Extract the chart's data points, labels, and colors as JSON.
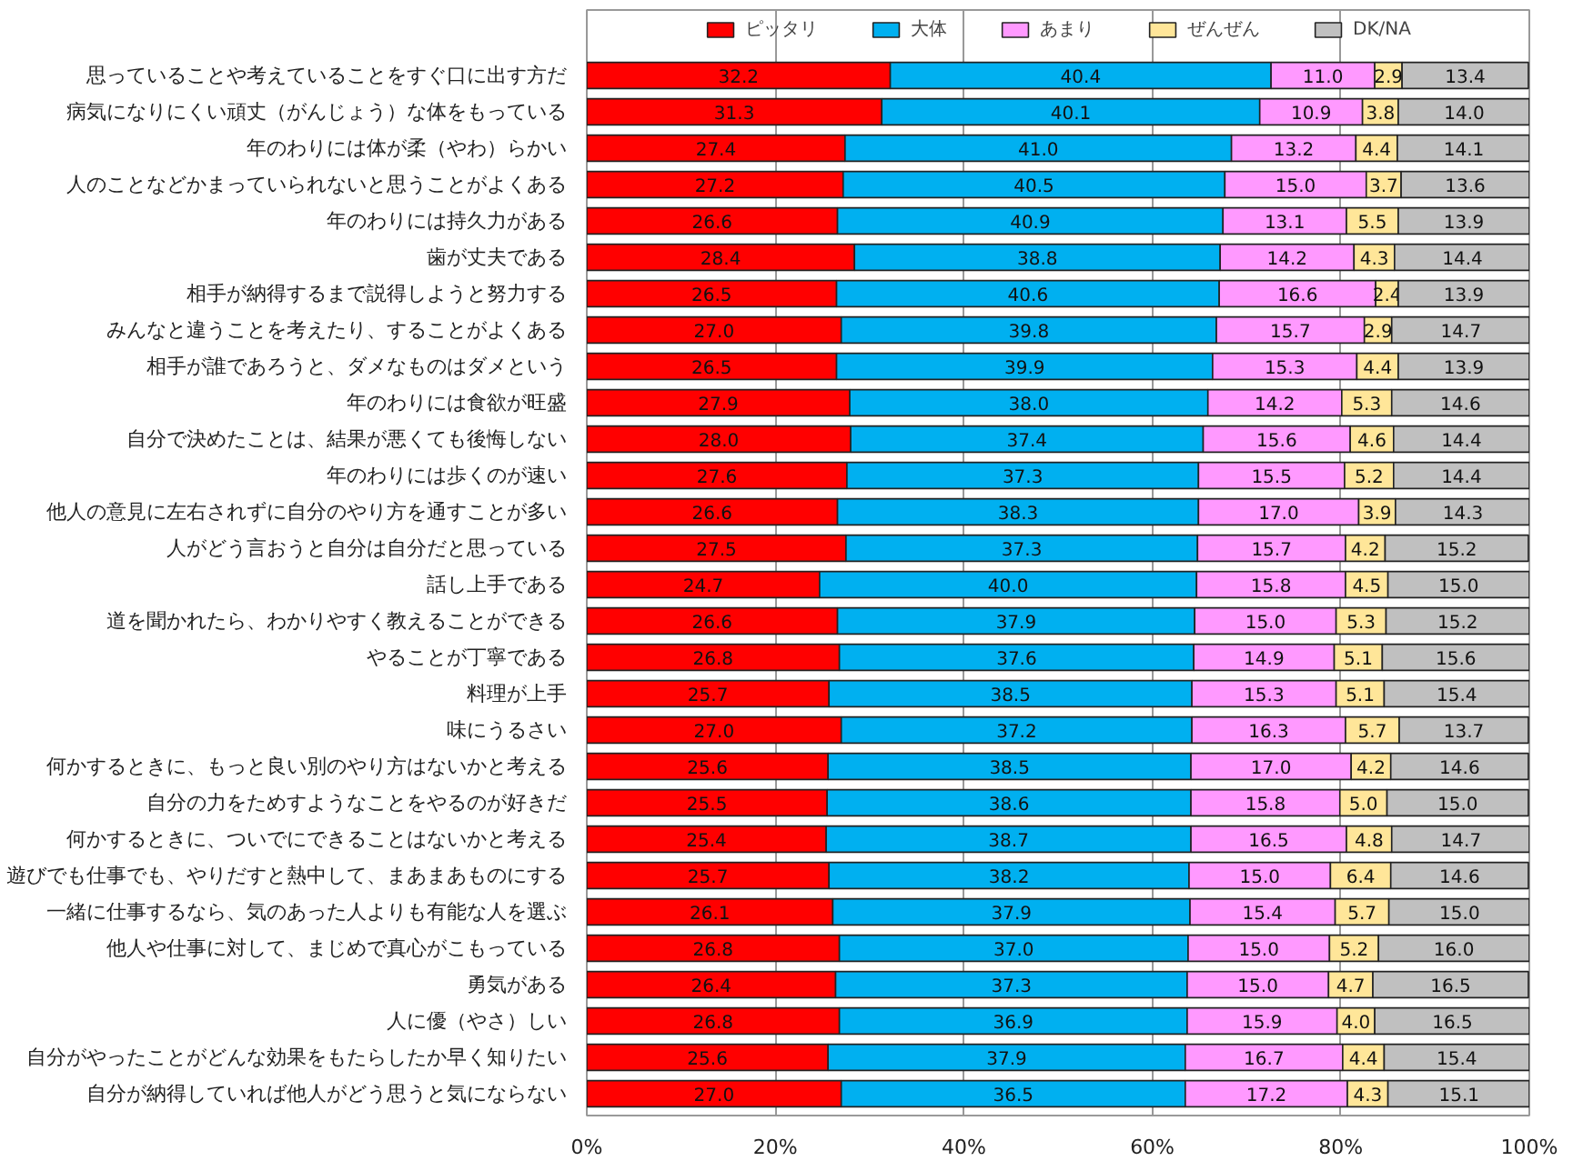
{
  "chart_data": {
    "type": "bar",
    "orientation": "horizontal",
    "stacked": true,
    "grid": "x",
    "legend": "top",
    "categories": [
      "思っていることや考えていることをすぐ口に出す方だ",
      "病気になりにくい頑丈（がんじょう）な体をもっている",
      "年のわりには体が柔（やわ）らかい",
      "人のことなどかまっていられないと思うことがよくある",
      "年のわりには持久力がある",
      "歯が丈夫である",
      "相手が納得するまで説得しようと努力する",
      "みんなと違うことを考えたり、することがよくある",
      "相手が誰であろうと、ダメなものはダメという",
      "年のわりには食欲が旺盛",
      "自分で決めたことは、結果が悪くても後悔しない",
      "年のわりには歩くのが速い",
      "他人の意見に左右されずに自分のやり方を通すことが多い",
      "人がどう言おうと自分は自分だと思っている",
      "話し上手である",
      "道を聞かれたら、わかりやすく教えることができる",
      "やることが丁寧である",
      "料理が上手",
      "味にうるさい",
      "何かするときに、もっと良い別のやり方はないかと考える",
      "自分の力をためすようなことをやるのが好きだ",
      "何かするときに、ついでにできることはないかと考える",
      "遊びでも仕事でも、やりだすと熱中して、まあまあものにする",
      "一緒に仕事するなら、気のあった人よりも有能な人を選ぶ",
      "他人や仕事に対して、まじめで真心がこもっている",
      "勇気がある",
      "人に優（やさ）しい",
      "自分がやったことがどんな効果をもたらしたか早く知りたい",
      "自分が納得していれば他人がどう思うと気にならない"
    ],
    "xlim": [
      0,
      100
    ],
    "xticks": [
      {
        "value": 0,
        "label": "0%"
      },
      {
        "value": 20,
        "label": "20%"
      },
      {
        "value": 40,
        "label": "40%"
      },
      {
        "value": 60,
        "label": "60%"
      },
      {
        "value": 80,
        "label": "80%"
      },
      {
        "value": 100,
        "label": "100%"
      }
    ],
    "series": [
      {
        "name": "ピッタリ",
        "color": "#ff0000",
        "values": [
          32.2,
          31.3,
          27.4,
          27.2,
          26.6,
          28.4,
          26.5,
          27.0,
          26.5,
          27.9,
          28.0,
          27.6,
          26.6,
          27.5,
          24.7,
          26.6,
          26.8,
          25.7,
          27.0,
          25.6,
          25.5,
          25.4,
          25.7,
          26.1,
          26.8,
          26.4,
          26.8,
          25.6,
          27.0
        ],
        "value_labels": [
          "32.2",
          "31.3",
          "27.4",
          "27.2",
          "26.6",
          "28.4",
          "26.5",
          "27.0",
          "26.5",
          "27.9",
          "28.0",
          "27.6",
          "26.6",
          "27.5",
          "24.7",
          "26.6",
          "26.8",
          "25.7",
          "27.0",
          "25.6",
          "25.5",
          "25.4",
          "25.7",
          "26.1",
          "26.8",
          "26.4",
          "26.8",
          "25.6",
          "27.0"
        ]
      },
      {
        "name": "大体",
        "color": "#00b0f0",
        "values": [
          40.4,
          40.1,
          41.0,
          40.5,
          40.9,
          38.8,
          40.6,
          39.8,
          39.9,
          38.0,
          37.4,
          37.3,
          38.3,
          37.3,
          40.0,
          37.9,
          37.6,
          38.5,
          37.2,
          38.5,
          38.6,
          38.7,
          38.2,
          37.9,
          37.0,
          37.3,
          36.9,
          37.9,
          36.5
        ],
        "value_labels": [
          "40.4",
          "40.1",
          "41.0",
          "40.5",
          "40.9",
          "38.8",
          "40.6",
          "39.8",
          "39.9",
          "38.0",
          "37.4",
          "37.3",
          "38.3",
          "37.3",
          "40.0",
          "37.9",
          "37.6",
          "38.5",
          "37.2",
          "38.5",
          "38.6",
          "38.7",
          "38.2",
          "37.9",
          "37.0",
          "37.3",
          "36.9",
          "37.9",
          "36.5"
        ]
      },
      {
        "name": "あまり",
        "color": "#ff99ff",
        "values": [
          11.0,
          10.9,
          13.2,
          15.0,
          13.1,
          14.2,
          16.6,
          15.7,
          15.3,
          14.2,
          15.6,
          15.5,
          17.0,
          15.7,
          15.8,
          15.0,
          14.9,
          15.3,
          16.3,
          17.0,
          15.8,
          16.5,
          15.0,
          15.4,
          15.0,
          15.0,
          15.9,
          16.7,
          17.2
        ],
        "value_labels": [
          "11.0",
          "10.9",
          "13.2",
          "15.0",
          "13.1",
          "14.2",
          "16.6",
          "15.7",
          "15.3",
          "14.2",
          "15.6",
          "15.5",
          "17.0",
          "15.7",
          "15.8",
          "15.0",
          "14.9",
          "15.3",
          "16.3",
          "17.0",
          "15.8",
          "16.5",
          "15.0",
          "15.4",
          "15.0",
          "15.0",
          "15.9",
          "16.7",
          "17.2"
        ]
      },
      {
        "name": "ぜんぜん",
        "color": "#ffe699",
        "values": [
          2.9,
          3.8,
          4.4,
          3.7,
          5.5,
          4.3,
          2.4,
          2.9,
          4.4,
          5.3,
          4.6,
          5.2,
          3.9,
          4.2,
          4.5,
          5.3,
          5.1,
          5.1,
          5.7,
          4.2,
          5.0,
          4.8,
          6.4,
          5.7,
          5.2,
          4.7,
          4.0,
          4.4,
          4.3
        ],
        "value_labels": [
          "2.9",
          "3.8",
          "4.4",
          "3.7",
          "5.5",
          "4.3",
          "2.4",
          "2.9",
          "4.4",
          "5.3",
          "4.6",
          "5.2",
          "3.9",
          "4.2",
          "4.5",
          "5.3",
          "5.1",
          "5.1",
          "5.7",
          "4.2",
          "5.0",
          "4.8",
          "6.4",
          "5.7",
          "5.2",
          "4.7",
          "4.0",
          "4.4",
          "4.3"
        ]
      },
      {
        "name": "DK/NA",
        "color": "#c0c0c0",
        "values": [
          13.4,
          14.0,
          14.1,
          13.6,
          13.9,
          14.4,
          13.9,
          14.7,
          13.9,
          14.6,
          14.4,
          14.4,
          14.3,
          15.2,
          15.0,
          15.2,
          15.6,
          15.4,
          13.7,
          14.6,
          15.0,
          14.7,
          14.6,
          15.0,
          16.0,
          16.5,
          16.5,
          15.4,
          15.1
        ],
        "value_labels": [
          "13.4",
          "14.0",
          "14.1",
          "13.6",
          "13.9",
          "14.4",
          "13.9",
          "14.7",
          "13.9",
          "14.6",
          "14.4",
          "14.4",
          "14.3",
          "15.2",
          "15.0",
          "15.2",
          "15.6",
          "15.4",
          "13.7",
          "14.6",
          "15.0",
          "14.7",
          "14.6",
          "15.0",
          "16.0",
          "16.5",
          "16.5",
          "15.4",
          "15.1"
        ]
      }
    ]
  }
}
